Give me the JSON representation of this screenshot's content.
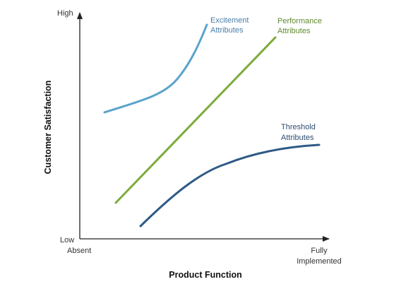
{
  "axes": {
    "y_title": "Customer Satisfaction",
    "x_title": "Product Function",
    "y_high": "High",
    "y_low": "Low",
    "x_low": "Absent",
    "x_high_line1": "Fully",
    "x_high_line2": "Implemented"
  },
  "curves": {
    "excitement": {
      "line1": "Excitement",
      "line2": "Attributes",
      "color": "#5ba3cc"
    },
    "performance": {
      "line1": "Performance",
      "line2": "Attributes",
      "color": "#7cab3c"
    },
    "threshold": {
      "line1": "Threshold",
      "line2": "Attributes",
      "color": "#2e5a86"
    }
  },
  "colors": {
    "axis": "#222222"
  }
}
